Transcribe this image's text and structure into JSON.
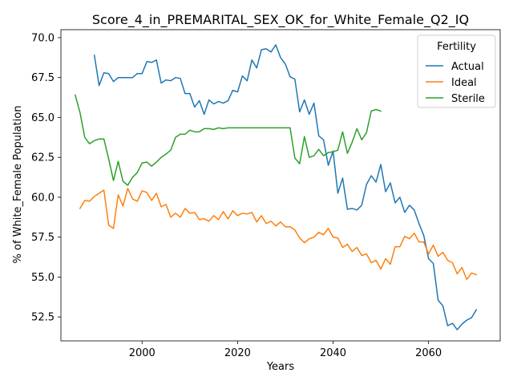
{
  "chart_data": {
    "type": "line",
    "title": "Score_4_in_PREMARITAL_SEX_OK_for_White_Female_Q2_IQ",
    "xlabel": "Years",
    "ylabel": "% of White_Female Population",
    "xlim": [
      1983,
      2075
    ],
    "ylim": [
      51.0,
      70.5
    ],
    "xticks": [
      2000,
      2020,
      2040,
      2060
    ],
    "yticks": [
      52.5,
      55.0,
      57.5,
      60.0,
      62.5,
      65.0,
      67.5,
      70.0
    ],
    "ytick_labels": [
      "52.5",
      "55.0",
      "57.5",
      "60.0",
      "62.5",
      "65.0",
      "67.5",
      "70.0"
    ],
    "grid": false,
    "legend": {
      "title": "Fertility",
      "placement": "top-right"
    },
    "series": [
      {
        "name": "Actual",
        "color": "#1f77b4",
        "x": [
          1990,
          1991,
          1992,
          1993,
          1994,
          1995,
          1996,
          1997,
          1998,
          1999,
          2000,
          2001,
          2002,
          2003,
          2004,
          2005,
          2006,
          2007,
          2008,
          2009,
          2010,
          2011,
          2012,
          2013,
          2014,
          2015,
          2016,
          2017,
          2018,
          2019,
          2020,
          2021,
          2022,
          2023,
          2024,
          2025,
          2026,
          2027,
          2028,
          2029,
          2030,
          2031,
          2032,
          2033,
          2034,
          2035,
          2036,
          2037,
          2038,
          2039,
          2040,
          2041,
          2042,
          2043,
          2044,
          2045,
          2046,
          2047,
          2048,
          2049,
          2050,
          2051,
          2052,
          2053,
          2054,
          2055,
          2056,
          2057,
          2058,
          2059,
          2060,
          2061,
          2062,
          2063,
          2064,
          2065,
          2066,
          2067,
          2068,
          2069,
          2070
        ],
        "values": [
          68.9,
          67.0,
          67.8,
          67.75,
          67.25,
          67.5,
          67.5,
          67.5,
          67.5,
          67.75,
          67.75,
          68.5,
          68.45,
          68.6,
          67.15,
          67.35,
          67.3,
          67.5,
          67.45,
          66.5,
          66.5,
          65.65,
          66.05,
          65.2,
          66.1,
          65.85,
          66.0,
          65.9,
          66.05,
          66.7,
          66.6,
          67.6,
          67.3,
          68.6,
          68.1,
          69.25,
          69.3,
          69.1,
          69.55,
          68.75,
          68.35,
          67.55,
          67.4,
          65.35,
          66.1,
          65.2,
          65.9,
          63.85,
          63.6,
          62.0,
          62.9,
          60.25,
          61.2,
          59.25,
          59.3,
          59.2,
          59.5,
          60.8,
          61.35,
          60.95,
          62.05,
          60.35,
          60.9,
          59.65,
          60.0,
          59.05,
          59.5,
          59.2,
          58.35,
          57.6,
          56.15,
          55.85,
          53.55,
          53.2,
          51.95,
          52.1,
          51.7,
          52.05,
          52.3,
          52.45,
          52.95
        ]
      },
      {
        "name": "Ideal",
        "color": "#ff7f0e",
        "x": [
          1987,
          1988,
          1989,
          1990,
          1991,
          1992,
          1993,
          1994,
          1995,
          1996,
          1997,
          1998,
          1999,
          2000,
          2001,
          2002,
          2003,
          2004,
          2005,
          2006,
          2007,
          2008,
          2009,
          2010,
          2011,
          2012,
          2013,
          2014,
          2015,
          2016,
          2017,
          2018,
          2019,
          2020,
          2021,
          2022,
          2023,
          2024,
          2025,
          2026,
          2027,
          2028,
          2029,
          2030,
          2031,
          2032,
          2033,
          2034,
          2035,
          2036,
          2037,
          2038,
          2039,
          2040,
          2041,
          2042,
          2043,
          2044,
          2045,
          2046,
          2047,
          2048,
          2049,
          2050,
          2051,
          2052,
          2053,
          2054,
          2055,
          2056,
          2057,
          2058,
          2059,
          2060,
          2061,
          2062,
          2063,
          2064,
          2065,
          2066,
          2067,
          2068,
          2069,
          2070
        ],
        "values": [
          59.3,
          59.8,
          59.75,
          60.05,
          60.25,
          60.45,
          58.25,
          58.05,
          60.15,
          59.45,
          60.55,
          59.9,
          59.75,
          60.4,
          60.3,
          59.8,
          60.25,
          59.4,
          59.55,
          58.75,
          59.0,
          58.75,
          59.3,
          59.0,
          59.05,
          58.6,
          58.65,
          58.5,
          58.85,
          58.6,
          59.1,
          58.65,
          59.15,
          58.85,
          59.0,
          58.95,
          59.05,
          58.45,
          58.85,
          58.35,
          58.5,
          58.2,
          58.45,
          58.15,
          58.15,
          57.95,
          57.45,
          57.15,
          57.4,
          57.5,
          57.8,
          57.65,
          58.05,
          57.5,
          57.45,
          56.85,
          57.05,
          56.6,
          56.85,
          56.35,
          56.45,
          55.9,
          56.05,
          55.5,
          56.15,
          55.8,
          56.9,
          56.9,
          57.55,
          57.4,
          57.75,
          57.2,
          57.2,
          56.45,
          57.0,
          56.3,
          56.55,
          56.05,
          55.9,
          55.2,
          55.6,
          54.85,
          55.25,
          55.15
        ]
      },
      {
        "name": "Sterile",
        "color": "#2ca02c",
        "x": [
          1986,
          1987,
          1988,
          1989,
          1990,
          1991,
          1992,
          1993,
          1994,
          1995,
          1996,
          1997,
          1998,
          1999,
          2000,
          2001,
          2002,
          2003,
          2004,
          2005,
          2006,
          2007,
          2008,
          2009,
          2010,
          2011,
          2012,
          2013,
          2014,
          2015,
          2016,
          2017,
          2018,
          2019,
          2020,
          2021,
          2022,
          2023,
          2024,
          2025,
          2026,
          2027,
          2028,
          2029,
          2030,
          2031,
          2032,
          2033,
          2034,
          2035,
          2036,
          2037,
          2038,
          2039,
          2040,
          2041,
          2042,
          2043,
          2044,
          2045,
          2046,
          2047,
          2048,
          2049,
          2050
        ],
        "values": [
          66.4,
          65.3,
          63.75,
          63.35,
          63.55,
          63.65,
          63.65,
          62.4,
          61.05,
          62.25,
          61.0,
          60.75,
          61.25,
          61.55,
          62.15,
          62.2,
          61.95,
          62.2,
          62.5,
          62.7,
          62.95,
          63.75,
          63.95,
          63.95,
          64.2,
          64.1,
          64.1,
          64.3,
          64.3,
          64.25,
          64.35,
          64.3,
          64.35,
          64.35,
          64.35,
          64.35,
          64.35,
          64.35,
          64.35,
          64.35,
          64.35,
          64.35,
          64.35,
          64.35,
          64.35,
          64.35,
          62.45,
          62.1,
          63.8,
          62.5,
          62.6,
          63.0,
          62.6,
          62.8,
          62.85,
          62.95,
          64.1,
          62.75,
          63.45,
          64.3,
          63.6,
          64.05,
          65.4,
          65.5,
          65.4
        ]
      }
    ]
  }
}
